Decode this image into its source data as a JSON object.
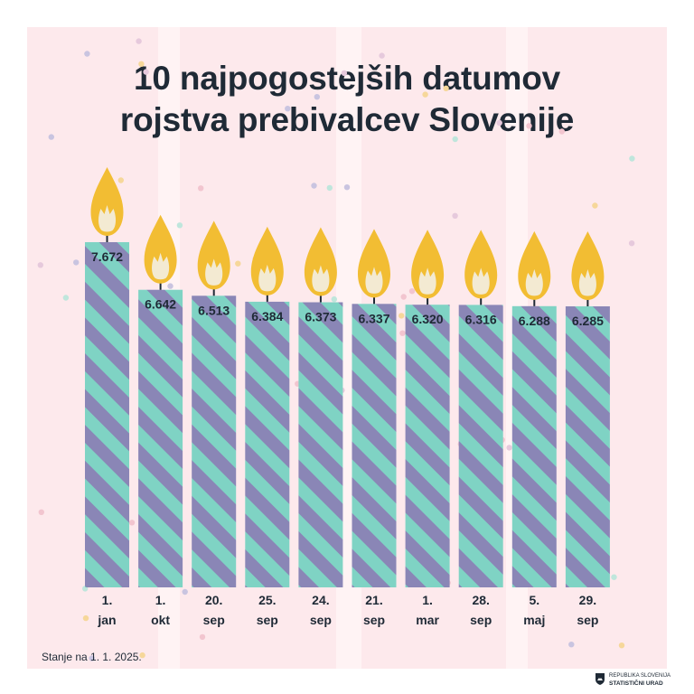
{
  "title_line1": "10 najpogostejših datumov",
  "title_line2": "rojstva prebivalcev Slovenije",
  "footnote": "Stanje na 1. 1. 2025.",
  "logo": {
    "line1": "REPUBLIKA SLOVENIJA",
    "line2": "STATISTIČNI URAD",
    "icon": "slovenia-coat-of-arms-icon"
  },
  "colors": {
    "background": "#fde9ec",
    "stripe_light": "#7fd3c4",
    "stripe_dark": "#8a86b6",
    "flame_outer": "#f2bd33",
    "flame_inner": "#f3ead2",
    "text": "#1f2a36"
  },
  "chart_data": {
    "type": "bar",
    "title": "10 najpogostejših datumov rojstva prebivalcev Slovenije",
    "categories": [
      {
        "day": "1.",
        "month": "jan"
      },
      {
        "day": "1.",
        "month": "okt"
      },
      {
        "day": "20.",
        "month": "sep"
      },
      {
        "day": "25.",
        "month": "sep"
      },
      {
        "day": "24.",
        "month": "sep"
      },
      {
        "day": "21.",
        "month": "sep"
      },
      {
        "day": "1.",
        "month": "mar"
      },
      {
        "day": "28.",
        "month": "sep"
      },
      {
        "day": "5.",
        "month": "maj"
      },
      {
        "day": "29.",
        "month": "sep"
      }
    ],
    "values": [
      7672,
      6642,
      6513,
      6384,
      6373,
      6337,
      6320,
      6316,
      6288,
      6285
    ],
    "value_labels": [
      "7.672",
      "6.642",
      "6.513",
      "6.384",
      "6.373",
      "6.337",
      "6.320",
      "6.316",
      "6.288",
      "6.285"
    ],
    "xlabel": "",
    "ylabel": "",
    "grid": false,
    "legend": "none"
  }
}
